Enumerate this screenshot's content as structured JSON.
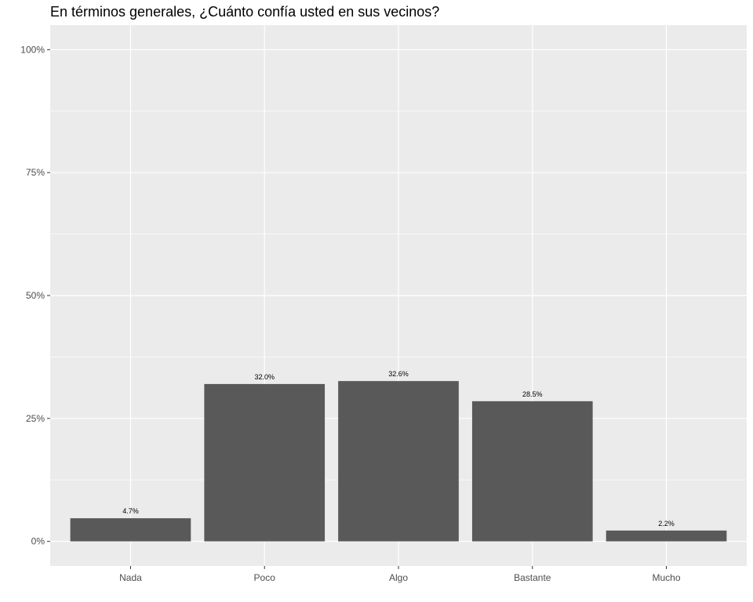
{
  "chart_data": {
    "type": "bar",
    "title": "En términos generales, ¿Cuánto confía usted en sus vecinos?",
    "xlabel": "",
    "ylabel": "",
    "categories": [
      "Nada",
      "Poco",
      "Algo",
      "Bastante",
      "Mucho"
    ],
    "values": [
      4.7,
      32.0,
      32.6,
      28.5,
      2.2
    ],
    "data_labels": [
      "4.7%",
      "32.0%",
      "32.6%",
      "28.5%",
      "2.2%"
    ],
    "ylim": [
      -5,
      105
    ],
    "yticks": [
      0,
      25,
      50,
      75,
      100
    ],
    "ytick_labels": [
      "0%",
      "25%",
      "50%",
      "75%",
      "100%"
    ],
    "grid": true,
    "legend": "none",
    "colors": {
      "bar": "#595959",
      "panel": "#ebebeb",
      "grid": "#ffffff"
    }
  }
}
